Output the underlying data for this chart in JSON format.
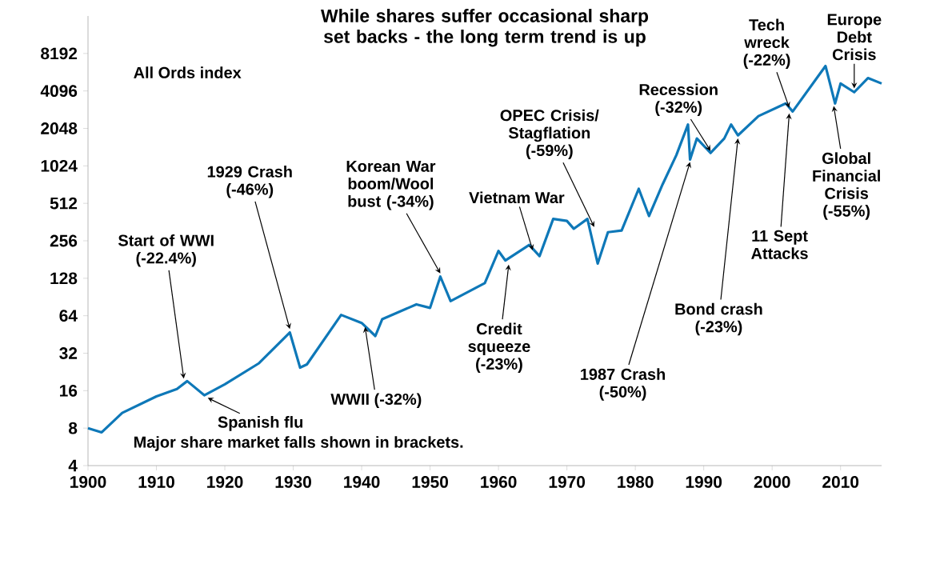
{
  "chart_data": {
    "type": "line",
    "title": "While shares suffer occasional sharp set backs - the long term trend is up",
    "x": [
      1900,
      1902,
      1905,
      1910,
      1913,
      1914.5,
      1917,
      1920,
      1925,
      1929.5,
      1931,
      1932,
      1937,
      1940,
      1942,
      1943,
      1948,
      1950,
      1951.5,
      1953,
      1958,
      1960,
      1961,
      1964.5,
      1966,
      1968,
      1970,
      1971,
      1973,
      1974.5,
      1976,
      1978,
      1980.5,
      1982,
      1984,
      1986,
      1987.7,
      1988,
      1989,
      1991,
      1993,
      1994,
      1995,
      1998,
      2002,
      2003,
      2007.8,
      2009.2,
      2010,
      2012,
      2014,
      2016
    ],
    "series": [
      {
        "color": "#0e78b8",
        "values": [
          8,
          7.4,
          10.6,
          14.4,
          16.5,
          19.1,
          14.7,
          18,
          26.6,
          47,
          24.5,
          26,
          65,
          56,
          44,
          60,
          79,
          74,
          132,
          84,
          117,
          212,
          178,
          237,
          193,
          384,
          370,
          320,
          384,
          168,
          300,
          310,
          670,
          405,
          730,
          1250,
          2200,
          1150,
          1700,
          1300,
          1700,
          2200,
          1800,
          2570,
          3250,
          2800,
          6500,
          3250,
          4700,
          4000,
          5200,
          4700
        ]
      }
    ],
    "xlim": [
      1900,
      2016
    ],
    "ylim": [
      4,
      16384
    ],
    "log": "y",
    "xticks": [
      1900,
      1910,
      1920,
      1930,
      1940,
      1950,
      1960,
      1970,
      1980,
      1990,
      2000,
      2010
    ],
    "yticks": [
      4,
      8,
      16,
      32,
      64,
      128,
      256,
      512,
      1024,
      2048,
      4096,
      8192
    ],
    "grid": false,
    "legend": false,
    "marker": "none",
    "line_style": "solid",
    "annotations": [
      "All Ords index",
      "Major share market falls shown in brackets.",
      {
        "text": "Start of WWI (-22.4%)",
        "x": 1914,
        "y": 20
      },
      {
        "text": "1929 Crash (-46%)",
        "x": 1929.5,
        "y": 50
      },
      {
        "text": "Korean War boom/Wool bust (-34%)",
        "x": 1951.5,
        "y": 140
      },
      {
        "text": "Spanish flu",
        "x": 1917.5,
        "y": 14
      },
      {
        "text": "WWII (-32%)",
        "x": 1940.5,
        "y": 52
      },
      {
        "text": "Credit squeeze (-23%)",
        "x": 1961.5,
        "y": 165
      },
      {
        "text": "Vietnam War",
        "x": 1965,
        "y": 215
      },
      {
        "text": "OPEC Crisis/ Stagflation (-59%)",
        "x": 1974,
        "y": 330
      },
      {
        "text": "Recession (-32%)",
        "x": 1991,
        "y": 1350
      },
      {
        "text": "1987 Crash (-50%)",
        "x": 1988,
        "y": 1100
      },
      {
        "text": "Bond crash (-23%)",
        "x": 1995,
        "y": 1700
      },
      {
        "text": "Tech wreck (-22%)",
        "x": 2002.5,
        "y": 3000
      },
      {
        "text": "11 Sept Attacks",
        "x": 2002.5,
        "y": 2700
      },
      {
        "text": "Global Financial Crisis (-55%)",
        "x": 2009,
        "y": 3100
      },
      {
        "text": "Europe Debt Crisis",
        "x": 2012,
        "y": 4300
      }
    ]
  }
}
